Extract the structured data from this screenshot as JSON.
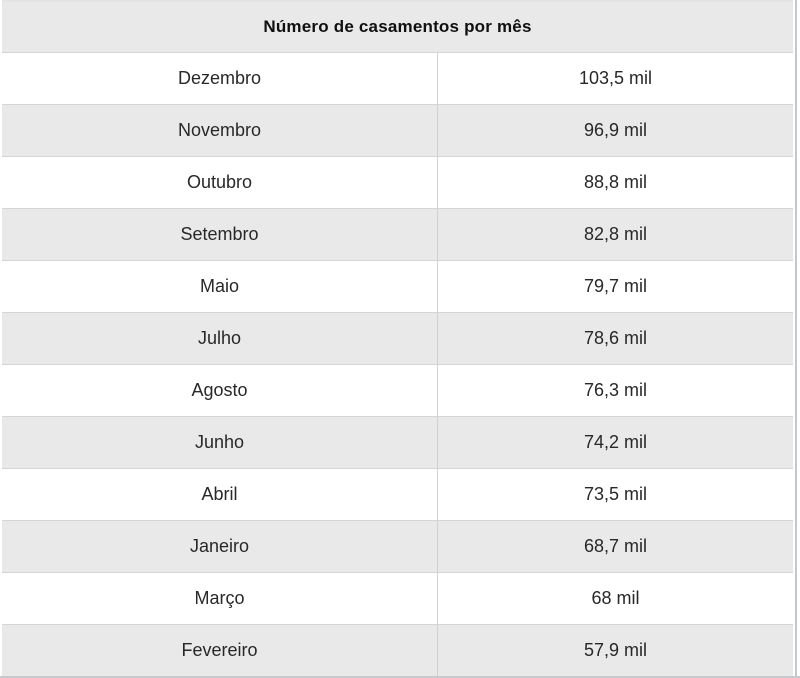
{
  "table": {
    "title": "Número de casamentos por mês",
    "rows": [
      {
        "month": "Dezembro",
        "value": "103,5 mil"
      },
      {
        "month": "Novembro",
        "value": "96,9 mil"
      },
      {
        "month": "Outubro",
        "value": "88,8 mil"
      },
      {
        "month": "Setembro",
        "value": "82,8 mil"
      },
      {
        "month": "Maio",
        "value": "79,7 mil"
      },
      {
        "month": "Julho",
        "value": "78,6 mil"
      },
      {
        "month": "Agosto",
        "value": "76,3 mil"
      },
      {
        "month": "Junho",
        "value": "74,2 mil"
      },
      {
        "month": "Abril",
        "value": "73,5 mil"
      },
      {
        "month": "Janeiro",
        "value": "68,7 mil"
      },
      {
        "month": "Março",
        "value": "68 mil"
      },
      {
        "month": "Fevereiro",
        "value": "57,9 mil"
      }
    ],
    "colors": {
      "alt_row_bg": "#e9e9e9",
      "header_bg": "#e9e9e9",
      "row_border": "#d5d5d5",
      "column_border": "#d0d0d0",
      "text": "#282828"
    }
  },
  "chart_data": {
    "type": "table",
    "title": "Número de casamentos por mês",
    "categories": [
      "Dezembro",
      "Novembro",
      "Outubro",
      "Setembro",
      "Maio",
      "Julho",
      "Agosto",
      "Junho",
      "Abril",
      "Janeiro",
      "Março",
      "Fevereiro"
    ],
    "values": [
      103.5,
      96.9,
      88.8,
      82.8,
      79.7,
      78.6,
      76.3,
      74.2,
      73.5,
      68.7,
      68,
      57.9
    ],
    "unit": "mil",
    "value_labels": [
      "103,5 mil",
      "96,9 mil",
      "88,8 mil",
      "82,8 mil",
      "79,7 mil",
      "78,6 mil",
      "76,3 mil",
      "74,2 mil",
      "73,5 mil",
      "68,7 mil",
      "68 mil",
      "57,9 mil"
    ],
    "layout": "two-column table, month left, value right, alternating gray rows, merged header"
  }
}
